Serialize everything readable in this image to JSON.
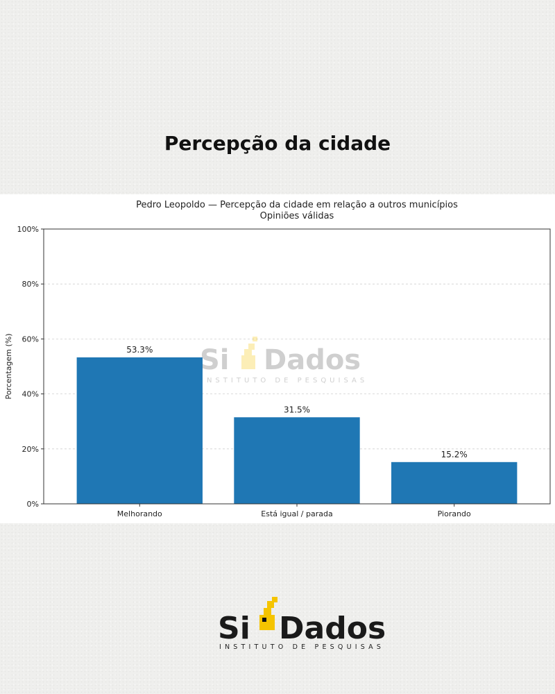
{
  "page": {
    "heading": "Percepção da cidade"
  },
  "brand": {
    "name_prefix": "Si",
    "name_suffix": "Dados",
    "tagline": "INSTITUTO DE PESQUISAS",
    "accent_color": "#f5c400"
  },
  "chart_data": {
    "type": "bar",
    "title": "Pedro Leopoldo — Percepção da cidade em relação a outros municípios",
    "subtitle": "Opiniões válidas",
    "xlabel": "",
    "ylabel": "Porcentagem (%)",
    "categories": [
      "Melhorando",
      "Está igual / parada",
      "Piorando"
    ],
    "values": [
      53.3,
      31.5,
      15.2
    ],
    "value_labels": [
      "53.3%",
      "31.5%",
      "15.2%"
    ],
    "ylim": [
      0,
      100
    ],
    "yticks": [
      0,
      20,
      40,
      60,
      80,
      100
    ],
    "ytick_labels": [
      "0%",
      "20%",
      "40%",
      "60%",
      "80%",
      "100%"
    ],
    "grid": "horizontal dashed",
    "bar_color": "#1f77b4"
  }
}
